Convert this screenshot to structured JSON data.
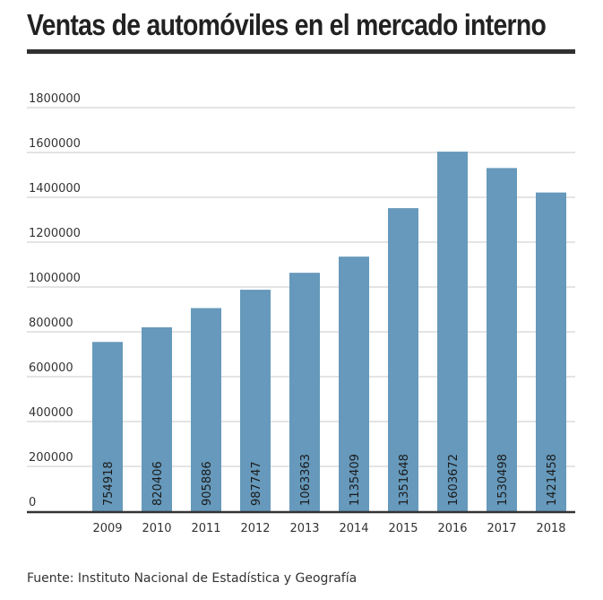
{
  "header": {
    "title": "Ventas de automóviles en el mercado interno"
  },
  "footer": {
    "source": "Fuente: Instituto Nacional de Estadística y Geografía"
  },
  "colors": {
    "bar": "#6699bb",
    "grid": "#c8c8c8",
    "axis": "#333333",
    "text": "#333333"
  },
  "chart_data": {
    "type": "bar",
    "title": "Ventas de automóviles en el mercado interno",
    "xlabel": "",
    "ylabel": "",
    "categories": [
      "2009",
      "2010",
      "2011",
      "2012",
      "2013",
      "2014",
      "2015",
      "2016",
      "2017",
      "2018"
    ],
    "values": [
      754918,
      820406,
      905886,
      987747,
      1063363,
      1135409,
      1351648,
      1603672,
      1530498,
      1421458
    ],
    "data_labels": [
      "754918",
      "820406",
      "905886",
      "987747",
      "1063363",
      "1135409",
      "1351648",
      "1603672",
      "1530498",
      "1421458"
    ],
    "ylim": [
      0,
      1800000
    ],
    "yticks": [
      0,
      200000,
      400000,
      600000,
      800000,
      1000000,
      1200000,
      1400000,
      1600000,
      1800000
    ],
    "ytick_labels": [
      "0",
      "200000",
      "400000",
      "600000",
      "800000",
      "1000000",
      "1200000",
      "1400000",
      "1600000",
      "1800000"
    ],
    "grid": true,
    "legend": "none"
  }
}
